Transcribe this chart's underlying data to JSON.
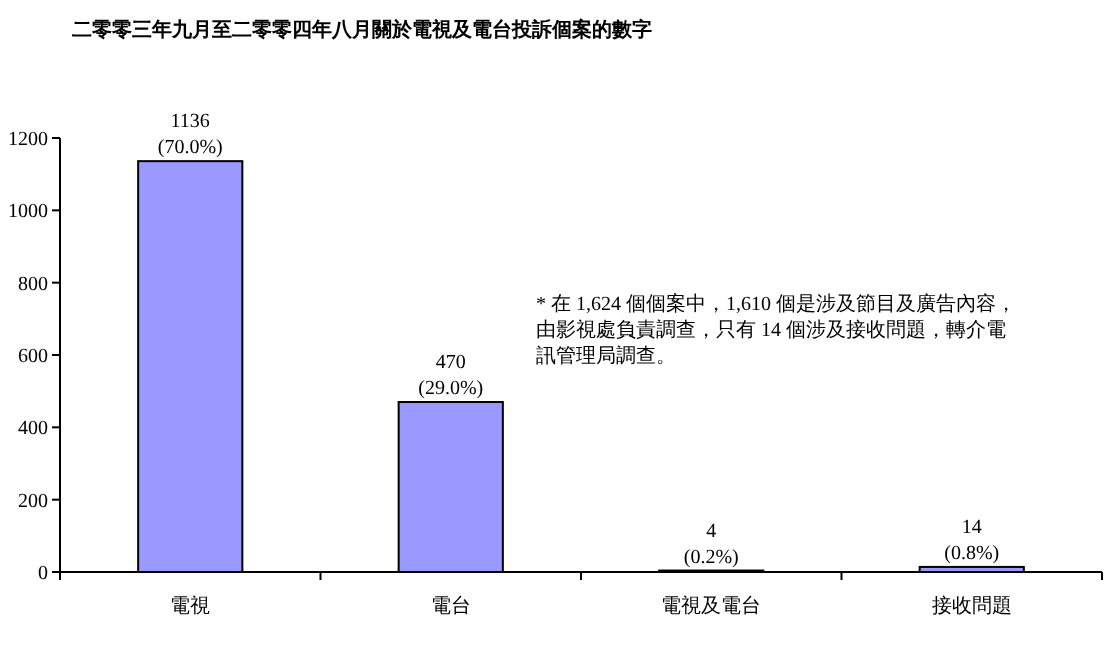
{
  "chart_data": {
    "type": "bar",
    "title": "二零零三年九月至二零零四年八月關於電視及電台投訴個案的數字",
    "categories": [
      "電視",
      "電台",
      "電視及電台",
      "接收問題"
    ],
    "values": [
      1136,
      470,
      4,
      14
    ],
    "color": "#9999ff",
    "value_labels": [
      "1136\n(70.0%)",
      "470\n(29.0%)",
      "4\n(0.2%)",
      "14\n(0.8%)"
    ],
    "ylim": [
      0,
      1200
    ],
    "yticks": [
      0,
      200,
      400,
      600,
      800,
      1000,
      1200
    ],
    "annotations": [
      "* 在 1,624 個個案中，1,610 個是涉及節目及廣告內容，由影視處負責調查，只有 14 個涉及接收問題，轉介電訊管理局調查。"
    ]
  }
}
